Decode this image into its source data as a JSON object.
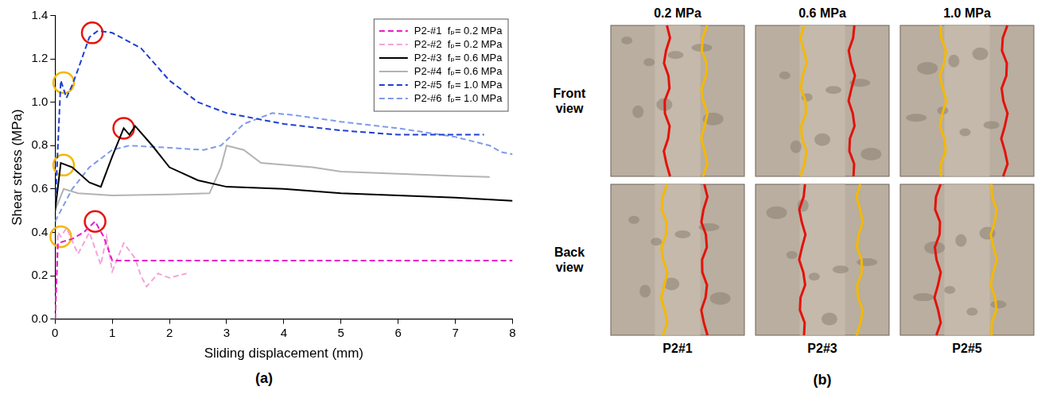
{
  "chart_data": {
    "type": "line",
    "panel_label": "(a)",
    "x_label": "Sliding displacement (mm)",
    "y_label": "Shear stress (MPa)",
    "xlim": [
      0,
      8
    ],
    "xticks": [
      0,
      1,
      2,
      3,
      4,
      5,
      6,
      7,
      8
    ],
    "ylim": [
      0,
      1.4
    ],
    "yticks": [
      {
        "value": 0,
        "label": "0.0"
      },
      0.2,
      0.4,
      0.6,
      0.8,
      {
        "value": 1,
        "label": "1.0"
      },
      1.2,
      1.4
    ],
    "grid": false,
    "legend": "upper right",
    "series": [
      {
        "name": "P2-#1  fₚ= 0.2 MPa",
        "color": "#e619c8",
        "line_style": "dashed",
        "marker": "none",
        "x": [
          0,
          0.05,
          0.3,
          0.5,
          0.7,
          0.85,
          1.0,
          2,
          3,
          4,
          5,
          6,
          7,
          8
        ],
        "values": [
          0,
          0.35,
          0.37,
          0.4,
          0.45,
          0.38,
          0.27,
          0.27,
          0.27,
          0.27,
          0.27,
          0.27,
          0.27,
          0.27
        ]
      },
      {
        "name": "P2-#2  fₚ= 0.2 MPa",
        "color": "#f5a3d9",
        "line_style": "dashed",
        "marker": "none",
        "x": [
          0,
          0.05,
          0.1,
          0.2,
          0.4,
          0.6,
          0.8,
          0.9,
          1.0,
          1.2,
          1.4,
          1.5,
          1.6,
          1.8,
          2.0,
          2.3
        ],
        "values": [
          0,
          0.4,
          0.38,
          0.42,
          0.3,
          0.4,
          0.25,
          0.38,
          0.22,
          0.35,
          0.28,
          0.2,
          0.15,
          0.21,
          0.19,
          0.21
        ]
      },
      {
        "name": "P2-#3  fₚ= 0.6 MPa",
        "color": "#000000",
        "line_style": "solid",
        "marker": "none",
        "x": [
          0,
          0.1,
          0.3,
          0.6,
          0.8,
          1.0,
          1.2,
          1.3,
          1.4,
          1.7,
          2.0,
          2.5,
          3,
          4,
          5,
          6,
          7,
          8
        ],
        "values": [
          0.5,
          0.72,
          0.7,
          0.63,
          0.61,
          0.75,
          0.88,
          0.85,
          0.89,
          0.8,
          0.7,
          0.64,
          0.61,
          0.6,
          0.58,
          0.57,
          0.56,
          0.545
        ]
      },
      {
        "name": "P2-#4  fₚ= 0.6 MPa",
        "color": "#b3b3b3",
        "line_style": "solid",
        "marker": "none",
        "x": [
          0,
          0.15,
          0.4,
          1,
          2,
          2.7,
          2.9,
          3.0,
          3.3,
          3.6,
          4.5,
          5,
          6,
          7,
          7.6
        ],
        "values": [
          0.5,
          0.6,
          0.58,
          0.57,
          0.575,
          0.58,
          0.7,
          0.8,
          0.78,
          0.72,
          0.7,
          0.68,
          0.67,
          0.66,
          0.655
        ]
      },
      {
        "name": "P2-#5  fₚ= 1.0 MPa",
        "color": "#1f3fcf",
        "line_style": "dashed",
        "marker": "none",
        "x": [
          0,
          0.1,
          0.2,
          0.3,
          0.4,
          0.6,
          0.75,
          1.0,
          1.5,
          2,
          2.5,
          3,
          4,
          5,
          6,
          7,
          7.5
        ],
        "values": [
          0.5,
          1.1,
          1.02,
          1.08,
          1.15,
          1.3,
          1.33,
          1.32,
          1.25,
          1.1,
          1.0,
          0.95,
          0.9,
          0.87,
          0.85,
          0.85,
          0.85
        ]
      },
      {
        "name": "P2-#6  fₚ= 1.0 MPa",
        "color": "#7f9be8",
        "line_style": "dashed",
        "marker": "none",
        "x": [
          0,
          0.3,
          0.6,
          1.0,
          1.3,
          2,
          2.6,
          2.9,
          3.3,
          3.8,
          4.2,
          5,
          6,
          7,
          7.6,
          7.8,
          8
        ],
        "values": [
          0.45,
          0.6,
          0.7,
          0.78,
          0.8,
          0.79,
          0.78,
          0.8,
          0.9,
          0.95,
          0.94,
          0.91,
          0.88,
          0.84,
          0.8,
          0.77,
          0.76
        ]
      }
    ],
    "circled_points": [
      {
        "x": 0.1,
        "y": 0.38,
        "color": "#f5b800"
      },
      {
        "x": 0.15,
        "y": 0.71,
        "color": "#f5b800"
      },
      {
        "x": 0.15,
        "y": 1.09,
        "color": "#f5b800"
      },
      {
        "x": 0.7,
        "y": 0.45,
        "color": "#e8120c"
      },
      {
        "x": 1.2,
        "y": 0.88,
        "color": "#e8120c"
      },
      {
        "x": 0.65,
        "y": 1.32,
        "color": "#e8120c"
      }
    ]
  },
  "photo_panel": {
    "panel_label": "(b)",
    "columns": [
      "0.2 MPa",
      "0.6 MPa",
      "1.0 MPa"
    ],
    "rows": [
      "Front view",
      "Back view"
    ],
    "specimens": [
      "P2#1",
      "P2#3",
      "P2#5"
    ]
  }
}
